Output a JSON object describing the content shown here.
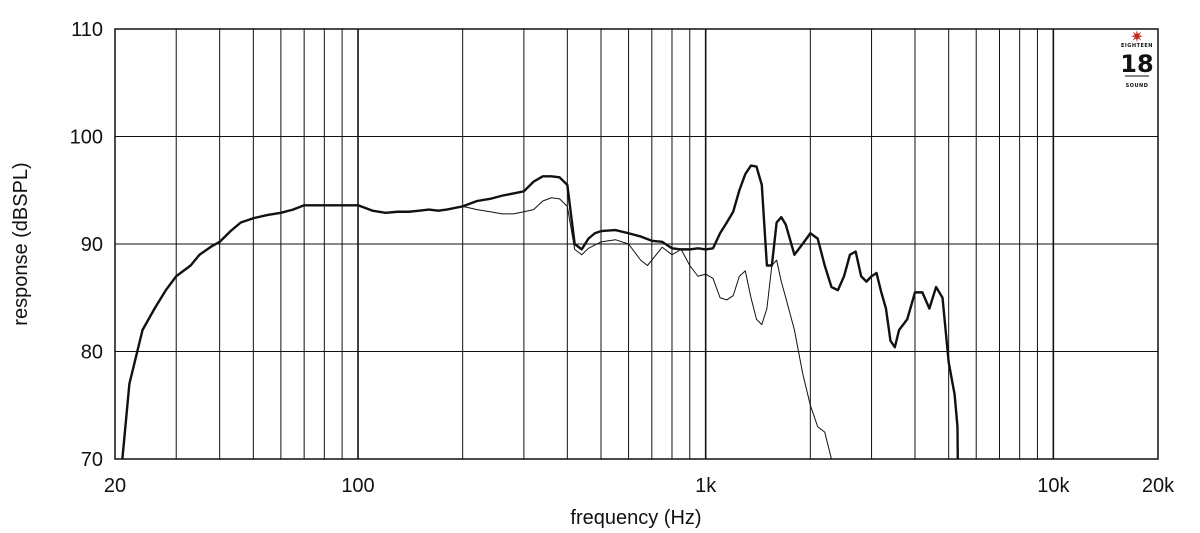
{
  "chart_data": {
    "type": "line",
    "x_scale": "log",
    "xlim": [
      20,
      20000
    ],
    "ylim": [
      70,
      110
    ],
    "xlabel": "frequency (Hz)",
    "ylabel": "response (dBSPL)",
    "x_tick_labels": [
      {
        "value": 20,
        "label": "20"
      },
      {
        "value": 100,
        "label": "100"
      },
      {
        "value": 1000,
        "label": "1k"
      },
      {
        "value": 10000,
        "label": "10k"
      },
      {
        "value": 20000,
        "label": "20k"
      }
    ],
    "y_ticks": [
      70,
      80,
      90,
      100,
      110
    ],
    "grid": true,
    "series": [
      {
        "style": "thick",
        "points": [
          [
            21,
            70
          ],
          [
            22,
            77
          ],
          [
            24,
            82
          ],
          [
            26,
            84
          ],
          [
            28,
            85.7
          ],
          [
            30,
            87
          ],
          [
            33,
            88
          ],
          [
            35,
            89
          ],
          [
            38,
            89.8
          ],
          [
            40,
            90.2
          ],
          [
            43,
            91.2
          ],
          [
            46,
            92
          ],
          [
            50,
            92.4
          ],
          [
            55,
            92.7
          ],
          [
            60,
            92.9
          ],
          [
            65,
            93.2
          ],
          [
            70,
            93.6
          ],
          [
            80,
            93.6
          ],
          [
            90,
            93.6
          ],
          [
            100,
            93.6
          ],
          [
            110,
            93.1
          ],
          [
            120,
            92.9
          ],
          [
            130,
            93
          ],
          [
            140,
            93
          ],
          [
            150,
            93.1
          ],
          [
            160,
            93.2
          ],
          [
            170,
            93.1
          ],
          [
            180,
            93.2
          ],
          [
            200,
            93.5
          ],
          [
            220,
            94
          ],
          [
            240,
            94.2
          ],
          [
            260,
            94.5
          ],
          [
            280,
            94.7
          ],
          [
            300,
            94.9
          ],
          [
            320,
            95.8
          ],
          [
            340,
            96.3
          ],
          [
            360,
            96.3
          ],
          [
            380,
            96.2
          ],
          [
            400,
            95.5
          ],
          [
            420,
            90
          ],
          [
            440,
            89.5
          ],
          [
            460,
            90.5
          ],
          [
            480,
            91
          ],
          [
            500,
            91.2
          ],
          [
            550,
            91.3
          ],
          [
            600,
            91
          ],
          [
            650,
            90.7
          ],
          [
            700,
            90.3
          ],
          [
            750,
            90.2
          ],
          [
            800,
            89.6
          ],
          [
            850,
            89.5
          ],
          [
            900,
            89.5
          ],
          [
            950,
            89.6
          ],
          [
            1000,
            89.5
          ],
          [
            1050,
            89.6
          ],
          [
            1100,
            91
          ],
          [
            1150,
            92
          ],
          [
            1200,
            93
          ],
          [
            1250,
            95
          ],
          [
            1300,
            96.5
          ],
          [
            1350,
            97.3
          ],
          [
            1400,
            97.2
          ],
          [
            1450,
            95.5
          ],
          [
            1500,
            88
          ],
          [
            1550,
            88
          ],
          [
            1600,
            92
          ],
          [
            1650,
            92.5
          ],
          [
            1700,
            91.8
          ],
          [
            1800,
            89
          ],
          [
            1900,
            90
          ],
          [
            2000,
            91
          ],
          [
            2100,
            90.5
          ],
          [
            2200,
            88
          ],
          [
            2300,
            86
          ],
          [
            2400,
            85.7
          ],
          [
            2500,
            87
          ],
          [
            2600,
            89
          ],
          [
            2700,
            89.3
          ],
          [
            2800,
            87
          ],
          [
            2900,
            86.5
          ],
          [
            3000,
            87
          ],
          [
            3100,
            87.3
          ],
          [
            3200,
            85.5
          ],
          [
            3300,
            84
          ],
          [
            3400,
            81
          ],
          [
            3500,
            80.4
          ],
          [
            3600,
            82
          ],
          [
            3800,
            83
          ],
          [
            4000,
            85.5
          ],
          [
            4200,
            85.5
          ],
          [
            4400,
            84
          ],
          [
            4600,
            86
          ],
          [
            4800,
            85
          ],
          [
            5000,
            79
          ],
          [
            5200,
            76
          ],
          [
            5300,
            73
          ],
          [
            5310,
            70
          ]
        ]
      },
      {
        "style": "thin",
        "points": [
          [
            200,
            93.5
          ],
          [
            220,
            93.2
          ],
          [
            240,
            93
          ],
          [
            260,
            92.8
          ],
          [
            280,
            92.8
          ],
          [
            300,
            93
          ],
          [
            320,
            93.2
          ],
          [
            340,
            94
          ],
          [
            360,
            94.3
          ],
          [
            380,
            94.2
          ],
          [
            400,
            93.5
          ],
          [
            420,
            89.5
          ],
          [
            440,
            89
          ],
          [
            460,
            89.6
          ],
          [
            480,
            89.9
          ],
          [
            500,
            90.2
          ],
          [
            550,
            90.4
          ],
          [
            600,
            90
          ],
          [
            650,
            88.5
          ],
          [
            680,
            88
          ],
          [
            700,
            88.5
          ],
          [
            750,
            89.7
          ],
          [
            800,
            89
          ],
          [
            850,
            89.5
          ],
          [
            900,
            88
          ],
          [
            950,
            87
          ],
          [
            1000,
            87.2
          ],
          [
            1050,
            86.8
          ],
          [
            1100,
            85
          ],
          [
            1150,
            84.8
          ],
          [
            1200,
            85.2
          ],
          [
            1250,
            87
          ],
          [
            1300,
            87.5
          ],
          [
            1350,
            85
          ],
          [
            1400,
            83
          ],
          [
            1450,
            82.5
          ],
          [
            1500,
            84
          ],
          [
            1550,
            88
          ],
          [
            1600,
            88.5
          ],
          [
            1650,
            86.5
          ],
          [
            1700,
            85
          ],
          [
            1800,
            82
          ],
          [
            1900,
            78
          ],
          [
            2000,
            75
          ],
          [
            2100,
            73
          ],
          [
            2200,
            72.5
          ],
          [
            2300,
            70
          ]
        ]
      }
    ]
  },
  "logo": {
    "number": "18",
    "top_text": "EIGHTEEN",
    "bottom_text": "SOUND"
  },
  "colors": {
    "grid": "#111111",
    "curve": "#111111",
    "logo_star": "#c0281e"
  }
}
